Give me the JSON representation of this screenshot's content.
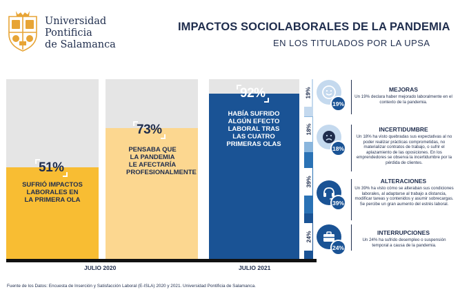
{
  "university": {
    "line1": "Universidad",
    "line2": "Pontificia",
    "line3": "de Salamanca"
  },
  "header": {
    "title": "IMPACTOS SOCIOLABORALES DE LA PANDEMIA",
    "subtitle": "EN LOS TITULADOS POR LA UPSA"
  },
  "chart_data": {
    "type": "bar",
    "title": "IMPACTOS SOCIOLABORALES DE LA PANDEMIA",
    "subtitle": "EN LOS TITULADOS POR LA UPSA",
    "ylim": [
      0,
      100
    ],
    "unit": "%",
    "bars": [
      {
        "period": "JULIO 2020",
        "value": 51,
        "value_label": "51%",
        "label": "SUFRIÓ IMPACTOS LABORALES EN LA PRIMERA OLA",
        "color": "#f8bd33"
      },
      {
        "period": "JULIO 2020",
        "value": 73,
        "value_label": "73%",
        "label": "PENSABA QUE LA PANDEMIA LE AFECTARÍA PROFESIONALMENTE",
        "color": "#fcd790"
      },
      {
        "period": "JULIO 2021",
        "value": 92,
        "value_label": "92%",
        "label": "HABÍA SUFRIDO ALGÚN EFECTO LABORAL TRAS LAS CUATRO PRIMERAS OLAS",
        "color": "#1a5395"
      }
    ],
    "periods": [
      "JULIO 2020",
      "JULIO 2021"
    ],
    "breakdown": {
      "of_value": 92,
      "segments": [
        {
          "name": "MEJORAS",
          "value": 19,
          "label": "19%",
          "color": "#c4d9ee"
        },
        {
          "name": "INCERTIDUMBRE",
          "value": 18,
          "label": "18%",
          "color": "#8ab6dd"
        },
        {
          "name": "ALTERACIONES",
          "value": 39,
          "label": "39%",
          "color": "#2a72b5"
        },
        {
          "name": "INTERRUPCIONES",
          "value": 24,
          "label": "24%",
          "color": "#1a5395"
        }
      ]
    }
  },
  "categories": [
    {
      "title": "MEJORAS",
      "pct": "19%",
      "icon": "smile-icon",
      "desc": "Un 19% declara haber mejorado laboralmente en el contexto de la pandemia."
    },
    {
      "title": "INCERTIDUMBRE",
      "pct": "18%",
      "icon": "frown-icon",
      "desc": "Un 18% ha visto quebradas sus expectativas al no poder realizar prácticas comprometidas, no materializar contratos de trabajo, o sufrir el aplazamiento de las oposiciones. En los emprendedores se observa la incertidumbre por la pérdida de clientes."
    },
    {
      "title": "ALTERACIONES",
      "pct": "39%",
      "icon": "headset-icon",
      "desc": "Un 39% ha visto cómo se alteraban sus condiciones laborales, al adaptarse al trabajo a distancia, modificar tareas y contenidos y asumir sobrecargas. Se percibe un gran aumento del estrés laboral."
    },
    {
      "title": "INTERRUPCIONES",
      "pct": "24%",
      "icon": "briefcase-icon",
      "desc": "Un 24% ha sufrido desempleo o suspensión temporal a causa de la pandemia."
    }
  ],
  "footer": {
    "source": "Fuente de los Datos: Encuesta de Inserción y Satisfacción Laboral (E-ISLA) 2020 y 2021. Universidad Pontificia de Salamanca."
  }
}
